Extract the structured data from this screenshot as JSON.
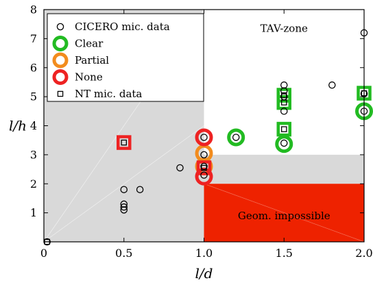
{
  "chart_data": {
    "type": "scatter",
    "xlabel": "l/d",
    "ylabel": "l/h",
    "xlim": [
      0,
      2.0
    ],
    "ylim": [
      0,
      8
    ],
    "x_ticks": [
      {
        "value": 0,
        "label": "0"
      },
      {
        "value": 0.5,
        "label": "0.5"
      },
      {
        "value": 1.0,
        "label": "1.0"
      },
      {
        "value": 1.5,
        "label": "1.5"
      },
      {
        "value": 2.0,
        "label": "2.0"
      }
    ],
    "y_ticks": [
      {
        "value": 1,
        "label": "1"
      },
      {
        "value": 2,
        "label": "2"
      },
      {
        "value": 3,
        "label": "3"
      },
      {
        "value": 4,
        "label": "4"
      },
      {
        "value": 5,
        "label": "5"
      },
      {
        "value": 6,
        "label": "6"
      },
      {
        "value": 7,
        "label": "7"
      },
      {
        "value": 8,
        "label": "8"
      }
    ],
    "grid": false,
    "legend_position": "top-left",
    "colors": {
      "clear": "#22bb22",
      "partial": "#f28c1e",
      "none": "#ee2222",
      "grey_region": "#d9d9d9",
      "geom_region": "#ee2200"
    },
    "regions": [
      {
        "name": "grey-region-left",
        "x": [
          0,
          1.0
        ],
        "y": [
          0,
          8
        ],
        "color": "#d9d9d9"
      },
      {
        "name": "grey-region-band",
        "x": [
          1.0,
          2.0
        ],
        "y": [
          2.0,
          3.0
        ],
        "color": "#d9d9d9"
      },
      {
        "name": "geom-impossible-region",
        "x": [
          1.0,
          2.0
        ],
        "y": [
          0,
          2.0
        ],
        "color": "#ee2200"
      }
    ],
    "annotations": [
      {
        "text": "TAV-zone",
        "x": 1.5,
        "y": 7.35
      },
      {
        "text": "Geom. impossible",
        "x": 1.5,
        "y": 0.9
      }
    ],
    "legend": [
      {
        "label": "CICERO mic. data",
        "marker": "circle-small"
      },
      {
        "label": "Clear",
        "marker": "ring",
        "color": "#22bb22"
      },
      {
        "label": "Partial",
        "marker": "ring",
        "color": "#f28c1e"
      },
      {
        "label": "None",
        "marker": "ring",
        "color": "#ee2222"
      },
      {
        "label": "NT mic. data",
        "marker": "square-small"
      }
    ],
    "series": [
      {
        "name": "CICERO mic. data",
        "marker": "circle-small",
        "points": [
          [
            0.02,
            0.0
          ],
          [
            0.5,
            1.8
          ],
          [
            0.5,
            1.3
          ],
          [
            0.5,
            1.2
          ],
          [
            0.5,
            1.1
          ],
          [
            0.6,
            1.8
          ],
          [
            0.85,
            2.55
          ],
          [
            1.0,
            3.6
          ],
          [
            1.0,
            3.0
          ],
          [
            1.0,
            2.6
          ],
          [
            1.0,
            2.3
          ],
          [
            1.2,
            3.6
          ],
          [
            1.5,
            5.4
          ],
          [
            1.5,
            5.2
          ],
          [
            1.5,
            5.0
          ],
          [
            1.5,
            4.5
          ],
          [
            1.5,
            3.4
          ],
          [
            1.8,
            5.4
          ],
          [
            2.0,
            7.2
          ],
          [
            2.0,
            5.1
          ],
          [
            2.0,
            4.5
          ]
        ]
      },
      {
        "name": "NT mic. data",
        "marker": "square-small",
        "points": [
          [
            0.02,
            0.0
          ],
          [
            0.5,
            3.42
          ],
          [
            1.0,
            2.55
          ],
          [
            1.5,
            5.05
          ],
          [
            1.5,
            4.8
          ],
          [
            1.5,
            3.88
          ],
          [
            2.0,
            5.12
          ]
        ]
      },
      {
        "name": "Clear",
        "color": "#22bb22",
        "points": [
          {
            "x": 1.2,
            "y": 3.6,
            "shape": "circle"
          },
          {
            "x": 1.5,
            "y": 3.37,
            "shape": "circle"
          },
          {
            "x": 2.0,
            "y": 4.5,
            "shape": "circle"
          },
          {
            "x": 1.5,
            "y": 5.05,
            "shape": "square"
          },
          {
            "x": 1.5,
            "y": 4.8,
            "shape": "square"
          },
          {
            "x": 1.5,
            "y": 3.88,
            "shape": "square"
          },
          {
            "x": 2.0,
            "y": 5.12,
            "shape": "square"
          }
        ]
      },
      {
        "name": "Partial",
        "color": "#f28c1e",
        "points": [
          {
            "x": 1.0,
            "y": 3.05,
            "shape": "circle"
          },
          {
            "x": 1.0,
            "y": 2.6,
            "shape": "circle"
          }
        ]
      },
      {
        "name": "None",
        "color": "#ee2222",
        "points": [
          {
            "x": 1.0,
            "y": 3.6,
            "shape": "circle"
          },
          {
            "x": 1.0,
            "y": 2.25,
            "shape": "circle"
          },
          {
            "x": 0.5,
            "y": 3.42,
            "shape": "square"
          },
          {
            "x": 1.0,
            "y": 2.55,
            "shape": "square"
          }
        ]
      }
    ]
  }
}
